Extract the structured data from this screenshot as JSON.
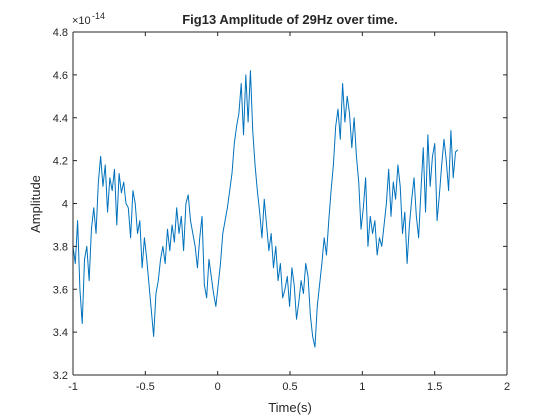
{
  "chart_data": {
    "type": "line",
    "title": "Fig13 Amplitude of 29Hz over time.",
    "xlabel": "Time(s)",
    "ylabel": "Amplitude",
    "y_multiplier": "×10",
    "y_exponent": "-14",
    "xlim": [
      -1,
      2
    ],
    "ylim": [
      3.2,
      4.8
    ],
    "x_ticks": [
      "-1",
      "-0.5",
      "0",
      "0.5",
      "1",
      "1.5",
      "2"
    ],
    "y_ticks": [
      "3.2",
      "3.4",
      "3.6",
      "3.8",
      "4",
      "4.2",
      "4.4",
      "4.6",
      "4.8"
    ],
    "grid": false,
    "line_color": "#0072BD",
    "x_start": -1.0,
    "x_end": 1.66,
    "series": [
      {
        "values": [
          3.8,
          3.72,
          3.92,
          3.6,
          3.44,
          3.74,
          3.8,
          3.64,
          3.88,
          3.98,
          3.86,
          4.1,
          4.22,
          4.08,
          4.18,
          3.96,
          4.12,
          4.06,
          4.16,
          3.9,
          4.14,
          4.05,
          4.1,
          4.0,
          3.98,
          3.84,
          4.06,
          4.0,
          3.86,
          3.92,
          3.7,
          3.84,
          3.74,
          3.62,
          3.5,
          3.38,
          3.58,
          3.64,
          3.74,
          3.8,
          3.72,
          3.88,
          3.78,
          3.9,
          3.82,
          3.98,
          3.86,
          3.94,
          3.78,
          4.0,
          4.04,
          3.92,
          3.86,
          3.8,
          3.7,
          3.84,
          3.94,
          3.62,
          3.56,
          3.74,
          3.66,
          3.58,
          3.52,
          3.62,
          3.72,
          3.86,
          3.92,
          3.98,
          4.06,
          4.14,
          4.28,
          4.36,
          4.42,
          4.56,
          4.32,
          4.6,
          4.38,
          4.62,
          4.34,
          4.18,
          4.06,
          3.96,
          3.84,
          4.02,
          3.9,
          3.78,
          3.86,
          3.7,
          3.8,
          3.64,
          3.72,
          3.56,
          3.6,
          3.66,
          3.52,
          3.7,
          3.62,
          3.46,
          3.54,
          3.64,
          3.58,
          3.72,
          3.66,
          3.48,
          3.38,
          3.33,
          3.52,
          3.62,
          3.72,
          3.84,
          3.76,
          3.92,
          4.06,
          4.18,
          4.36,
          4.44,
          4.3,
          4.56,
          4.38,
          4.5,
          4.42,
          4.26,
          4.4,
          4.22,
          4.1,
          3.88,
          3.98,
          4.12,
          3.8,
          3.94,
          3.86,
          3.92,
          3.76,
          3.84,
          3.8,
          3.9,
          4.0,
          4.16,
          3.94,
          4.1,
          4.02,
          4.18,
          4.08,
          3.86,
          3.96,
          3.72,
          3.9,
          4.02,
          4.12,
          3.94,
          3.84,
          4.06,
          4.26,
          3.96,
          4.32,
          4.08,
          4.22,
          4.28,
          3.92,
          4.04,
          4.18,
          4.3,
          4.2,
          4.06,
          4.34,
          4.12,
          4.24,
          4.25
        ]
      }
    ]
  }
}
